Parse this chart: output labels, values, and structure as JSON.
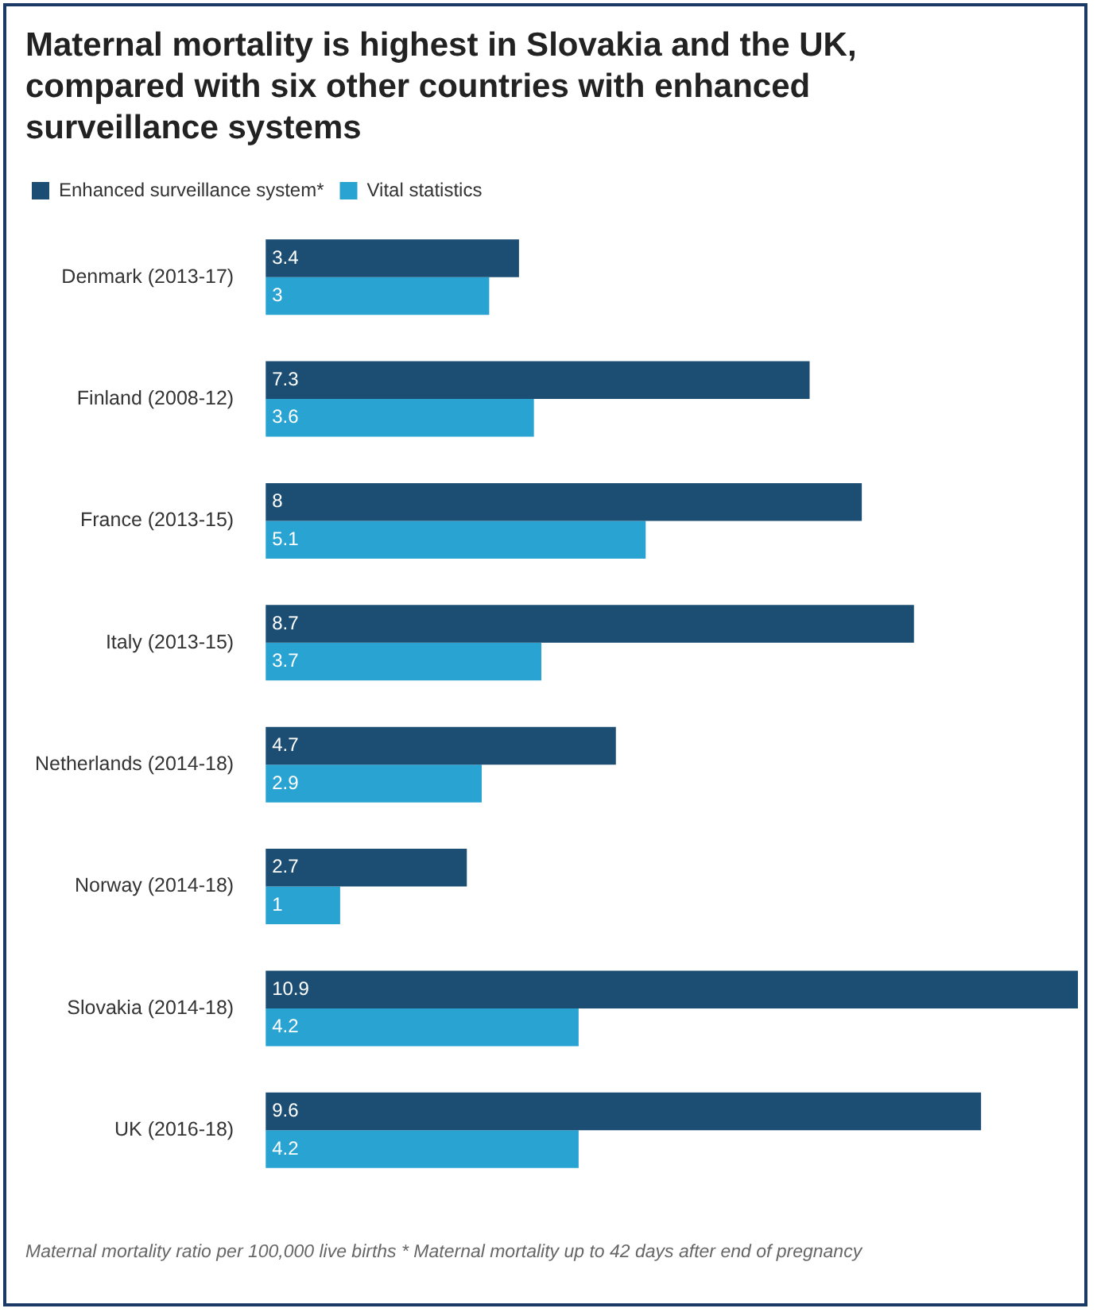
{
  "chart_data": {
    "type": "bar",
    "orientation": "horizontal",
    "title": "Maternal mortality is highest in Slovakia and the UK, compared with six other countries with enhanced surveillance systems",
    "categories": [
      "Denmark (2013-17)",
      "Finland (2008-12)",
      "France (2013-15)",
      "Italy (2013-15)",
      "Netherlands (2014-18)",
      "Norway (2014-18)",
      "Slovakia (2014-18)",
      "UK (2016-18)"
    ],
    "series": [
      {
        "name": "Enhanced surveillance system*",
        "color": "#1b4e72",
        "values": [
          3.4,
          7.3,
          8,
          8.7,
          4.7,
          2.7,
          10.9,
          9.6
        ]
      },
      {
        "name": "Vital statistics",
        "color": "#28a3d2",
        "values": [
          3,
          3.6,
          5.1,
          3.7,
          2.9,
          1,
          4.2,
          4.2
        ]
      }
    ],
    "xlim": [
      0,
      10.9
    ],
    "tick_labels": "y",
    "legend": "top left",
    "data_labels": true,
    "annotations": [
      "Maternal mortality ratio per 100,000 live births * Maternal mortality up to 42 days after end of pregnancy"
    ]
  }
}
